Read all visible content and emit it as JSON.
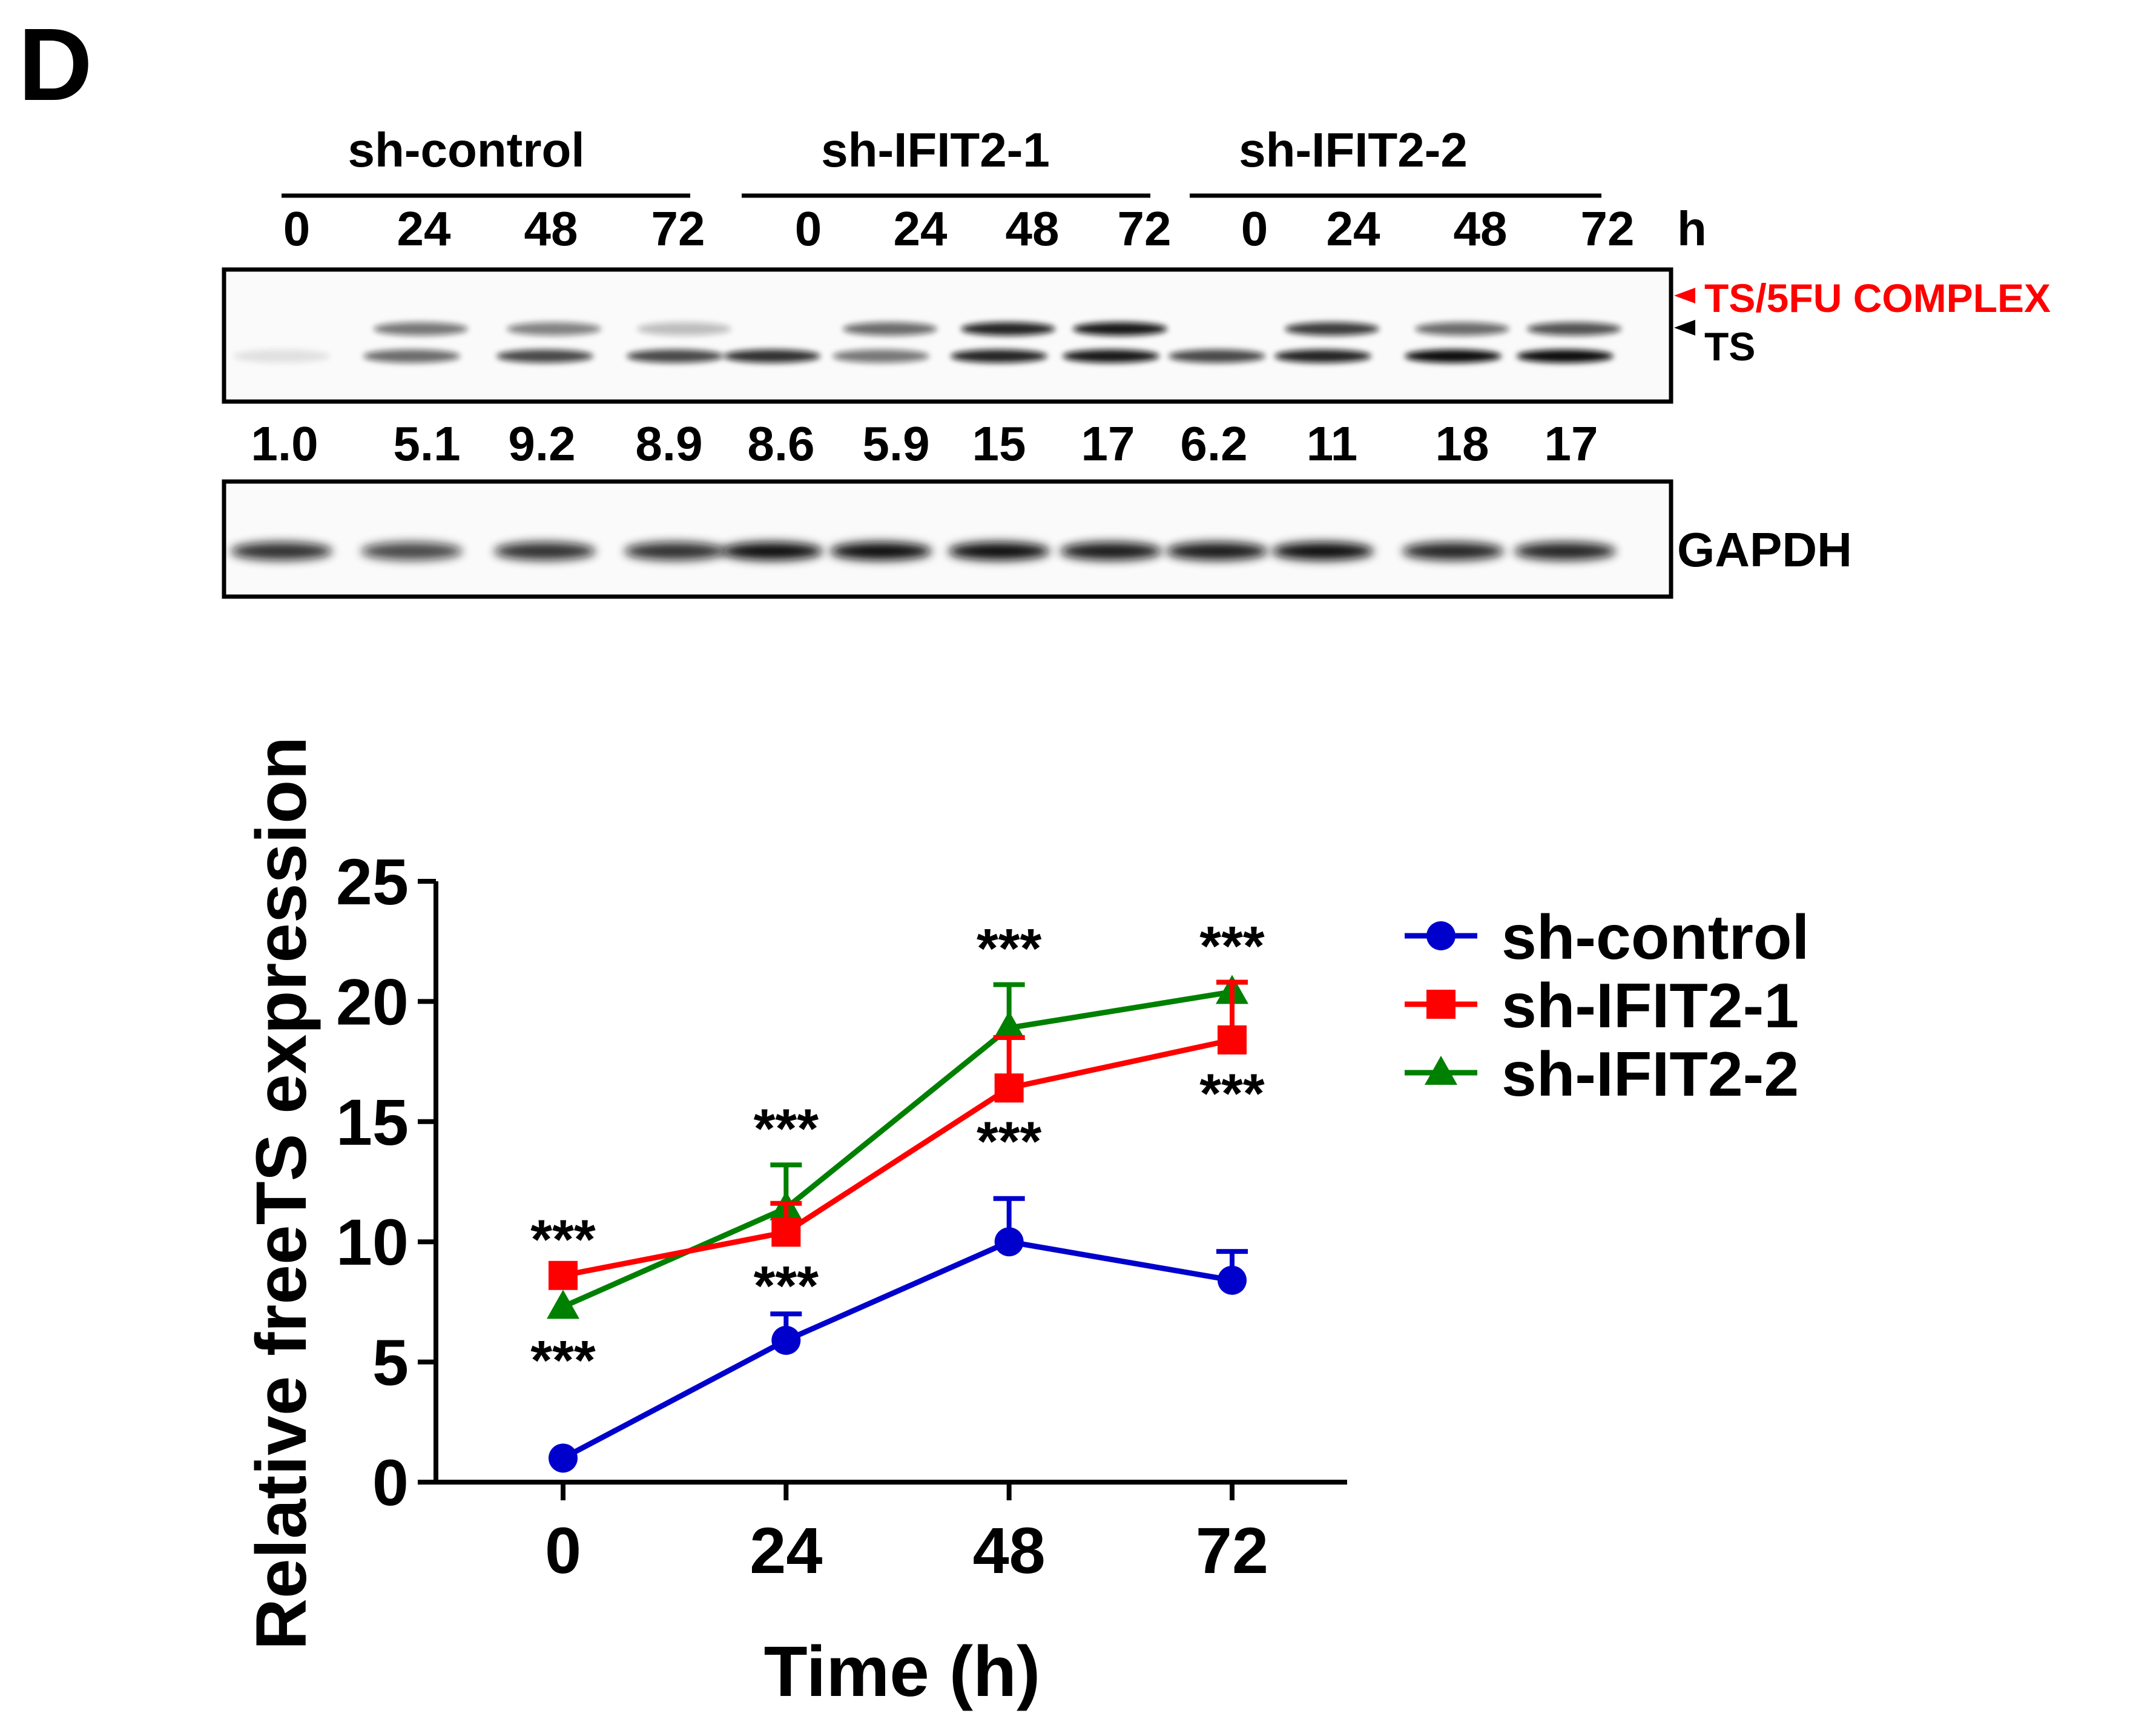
{
  "panel_label": "D",
  "blot": {
    "groups": [
      {
        "name": "sh-control",
        "times": [
          "0",
          "24",
          "48",
          "72"
        ]
      },
      {
        "name": "sh-IFIT2-1",
        "times": [
          "0",
          "24",
          "48",
          "72"
        ]
      },
      {
        "name": "sh-IFIT2-2",
        "times": [
          "0",
          "24",
          "48",
          "72"
        ]
      }
    ],
    "time_unit": "h",
    "band_labels": {
      "complex": "TS/5FU COMPLEX",
      "ts": "TS",
      "loading": "GAPDH"
    },
    "quantification": [
      "1.0",
      "5.1",
      "9.2",
      "8.9",
      "8.6",
      "5.9",
      "15",
      "17",
      "6.2",
      "11",
      "18",
      "17"
    ]
  },
  "colors": {
    "complex_label": "#ff0000",
    "control": "#0000cc",
    "ifit2_1": "#ff0000",
    "ifit2_2": "#008000"
  },
  "chart_data": {
    "type": "line",
    "xlabel": "Time  (h)",
    "ylabel": "Relative freeTS expression",
    "x": [
      0,
      24,
      48,
      72
    ],
    "x_ticks": [
      "0",
      "24",
      "48",
      "72"
    ],
    "ylim": [
      0,
      25
    ],
    "y_ticks": [
      "0",
      "5",
      "10",
      "15",
      "20",
      "25"
    ],
    "legend_position": "right",
    "series": [
      {
        "name": "sh-control",
        "values": [
          1.0,
          5.9,
          10.0,
          8.4
        ],
        "errors": [
          0.0,
          1.1,
          1.8,
          1.2
        ],
        "marker": "circle",
        "color": "#0000cc"
      },
      {
        "name": "sh-IFIT2-1",
        "values": [
          8.6,
          10.4,
          16.4,
          18.4
        ],
        "errors": [
          0.0,
          1.2,
          2.1,
          2.4
        ],
        "marker": "square",
        "color": "#ff0000"
      },
      {
        "name": "sh-IFIT2-2",
        "values": [
          7.3,
          11.4,
          18.9,
          20.4
        ],
        "errors": [
          0.0,
          1.8,
          1.8,
          0.4
        ],
        "marker": "triangle",
        "color": "#008000"
      }
    ],
    "annotations": [
      {
        "text": "***",
        "x": 0,
        "y": 8.6,
        "side": "above"
      },
      {
        "text": "***",
        "x": 0,
        "y": 7.3,
        "side": "below"
      },
      {
        "text": "***",
        "x": 24,
        "y": 13.2,
        "side": "above"
      },
      {
        "text": "***",
        "x": 24,
        "y": 10.4,
        "side": "below"
      },
      {
        "text": "***",
        "x": 48,
        "y": 20.7,
        "side": "above"
      },
      {
        "text": "***",
        "x": 48,
        "y": 16.4,
        "side": "below"
      },
      {
        "text": "***",
        "x": 72,
        "y": 20.8,
        "side": "above"
      },
      {
        "text": "***",
        "x": 72,
        "y": 18.4,
        "side": "below"
      }
    ]
  }
}
